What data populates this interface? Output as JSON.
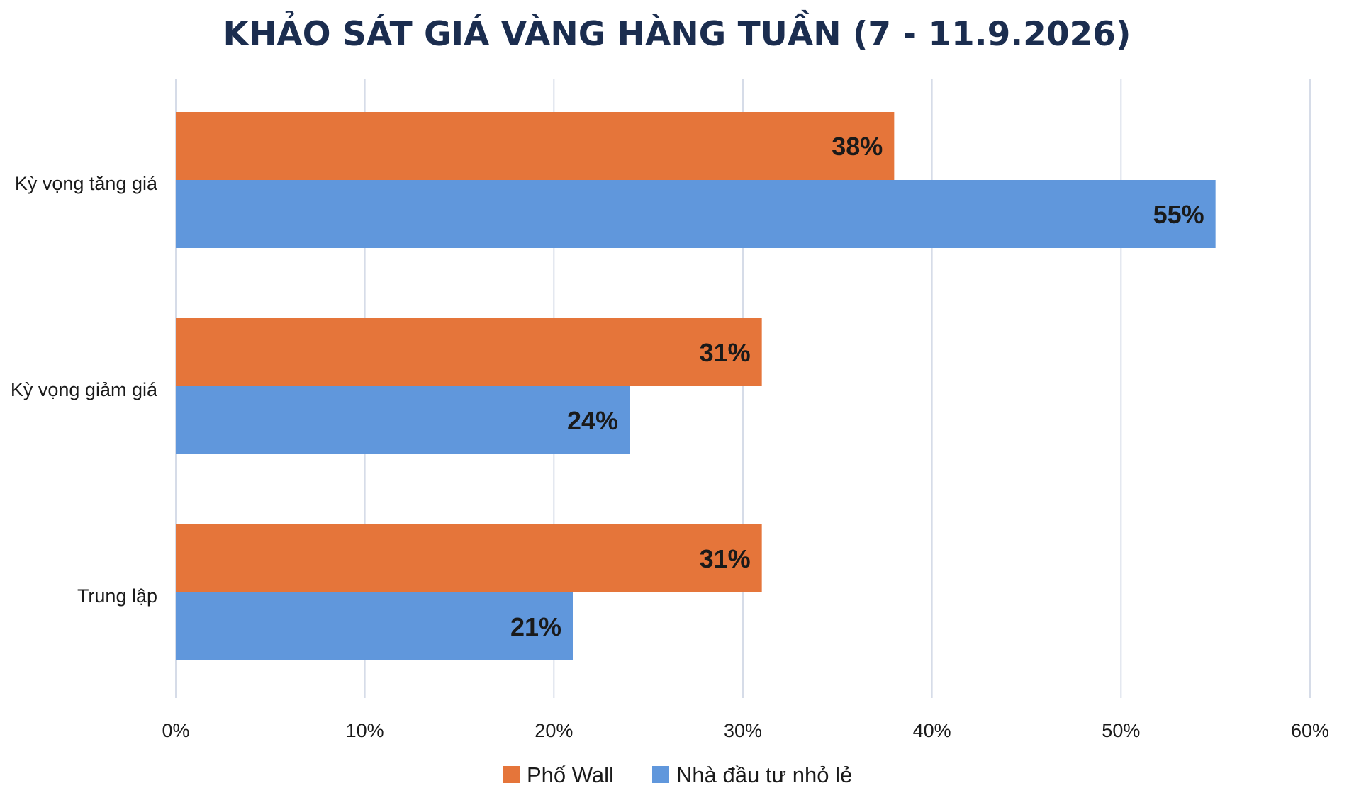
{
  "chart_data": {
    "type": "bar",
    "orientation": "horizontal",
    "title": "KHẢO SÁT GIÁ VÀNG HÀNG TUẦN (7 - 11.9.2026)",
    "xlabel": "",
    "ylabel": "",
    "categories": [
      "Kỳ vọng tăng giá",
      "Kỳ vọng giảm giá",
      "Trung lập"
    ],
    "series": [
      {
        "name": "Phố Wall",
        "color": "#E5753A",
        "values": [
          38,
          31,
          31
        ],
        "labels": [
          "38%",
          "31%",
          "31%"
        ]
      },
      {
        "name": "Nhà đầu tư nhỏ lẻ",
        "color": "#6097DC",
        "values": [
          55,
          24,
          21
        ],
        "labels": [
          "55%",
          "24%",
          "21%"
        ]
      }
    ],
    "xlim": [
      0,
      60
    ],
    "x_ticks": [
      0,
      10,
      20,
      30,
      40,
      50,
      60
    ],
    "x_tick_labels": [
      "0%",
      "10%",
      "20%",
      "30%",
      "40%",
      "50%",
      "60%"
    ],
    "grid": "vertical",
    "legend": "bottom-center"
  },
  "colors": {
    "title": "#1B2D4F",
    "gridline": "#D6DCE8",
    "axis_text": "#1A1A1A",
    "data_label": "#1A1A1A"
  }
}
